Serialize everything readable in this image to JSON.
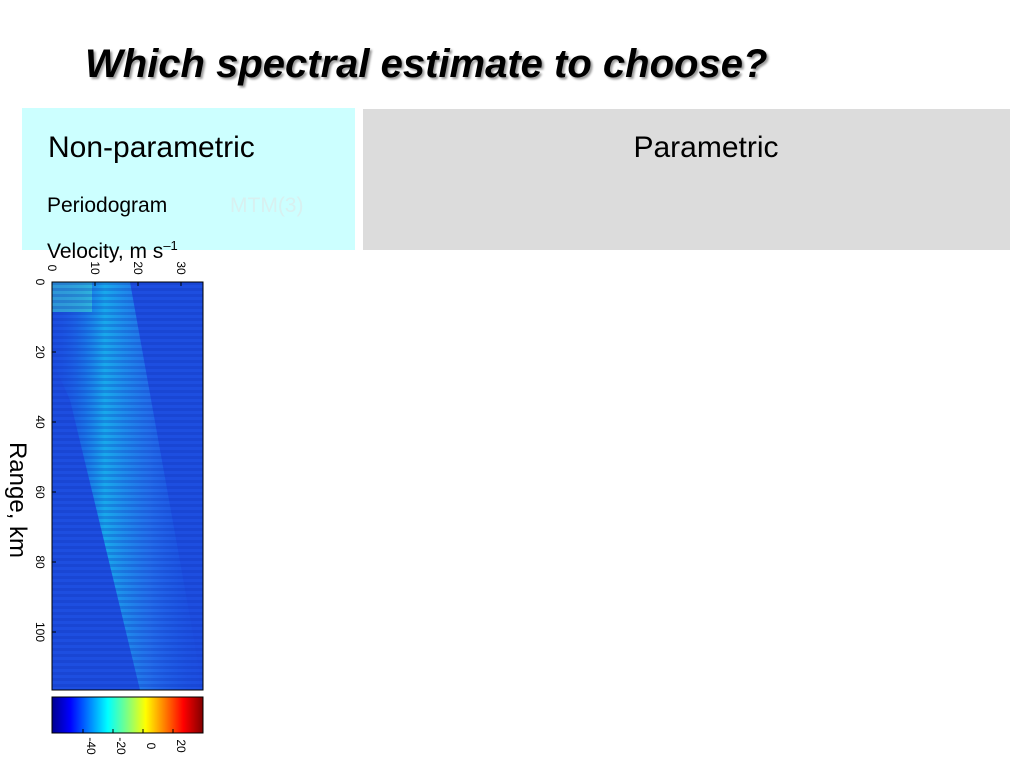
{
  "header": {
    "title": "Which spectral estimate to choose?"
  },
  "columns": {
    "left": "Non-parametric",
    "right": "Parametric"
  },
  "methods": {
    "first": "Periodogram",
    "second": "MTM(3)"
  },
  "figure": {
    "velocity_label": "Velocity, m s",
    "velocity_exponent": "–1",
    "velocity_ticks": [
      0,
      10,
      20,
      30
    ],
    "range_label": "Range, km",
    "range_ticks": [
      0,
      20,
      40,
      60,
      80,
      100
    ],
    "colorbar_ticks": [
      -40,
      -20,
      0,
      20
    ]
  }
}
